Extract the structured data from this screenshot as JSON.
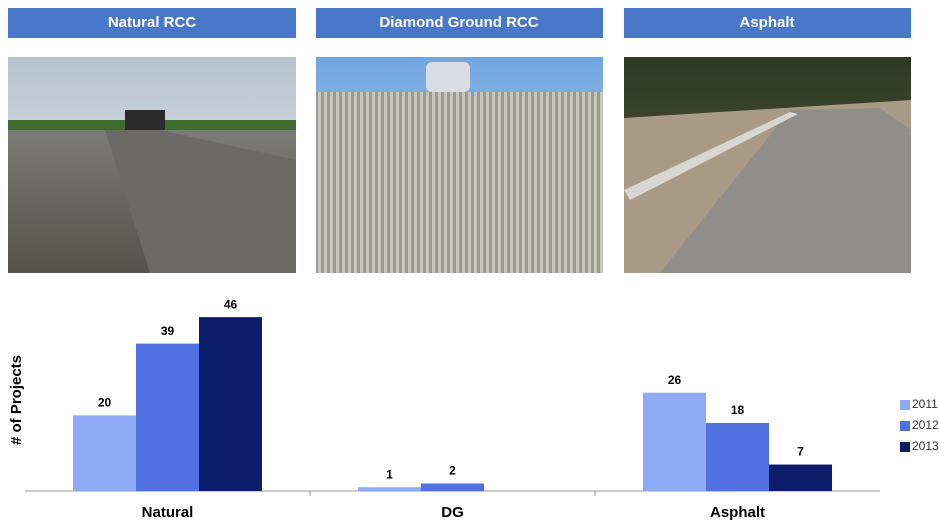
{
  "panels": [
    {
      "title": "Natural RCC"
    },
    {
      "title": "Diamond Ground RCC"
    },
    {
      "title": "Asphalt"
    }
  ],
  "chart_data": {
    "type": "bar",
    "y_label": "# of Projects",
    "categories": [
      "Natural",
      "DG",
      "Asphalt"
    ],
    "series": [
      {
        "name": "2011",
        "color": "#8faaf4",
        "values": [
          20,
          1,
          26
        ]
      },
      {
        "name": "2012",
        "color": "#5271e0",
        "values": [
          39,
          2,
          18
        ]
      },
      {
        "name": "2013",
        "color": "#0d1b6b",
        "values": [
          46,
          null,
          7
        ]
      }
    ],
    "ylim": [
      0,
      50
    ],
    "legend": "right"
  }
}
